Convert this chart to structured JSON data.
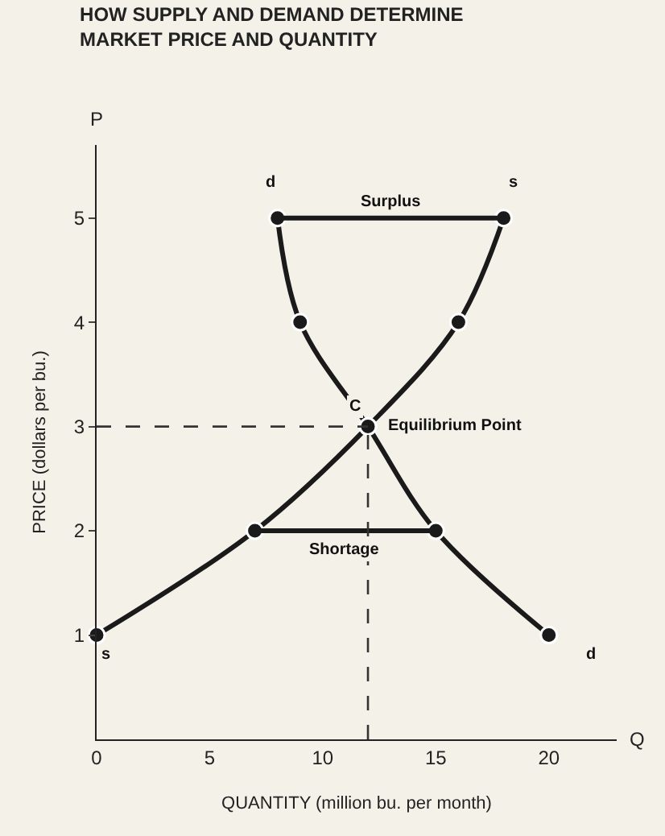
{
  "chart_data": {
    "type": "line",
    "title": "HOW SUPPLY AND DEMAND DETERMINE\nMARKET PRICE AND QUANTITY",
    "xlabel": "QUANTITY (million bu. per month)",
    "ylabel": "PRICE (dollars per bu.)",
    "series": [
      {
        "color": "#1a1a1a",
        "x": [
          0,
          7,
          12,
          16,
          18
        ],
        "values": [
          1,
          2,
          3,
          4,
          5
        ],
        "marker": "circle"
      },
      {
        "color": "#1a1a1a",
        "x": [
          8,
          9,
          12,
          15,
          20
        ],
        "values": [
          5,
          4,
          3,
          2,
          1
        ],
        "marker": "circle"
      },
      {
        "color": "#1a1a1a",
        "x": [
          8,
          18
        ],
        "values": [
          5,
          5
        ],
        "marker": "none"
      },
      {
        "color": "#1a1a1a",
        "x": [
          7,
          15
        ],
        "values": [
          2,
          2
        ],
        "marker": "none"
      }
    ],
    "xlim": [
      0,
      23
    ],
    "ylim": [
      0,
      5.7
    ],
    "xticks": [
      0,
      5,
      10,
      15,
      20
    ],
    "yticks": [
      1,
      2,
      3,
      4,
      5
    ],
    "grid": false,
    "ref_lines": [
      {
        "axis": "x",
        "value": 12,
        "line_style": "dashed"
      },
      {
        "axis": "y",
        "value": 3,
        "line_style": "dashed"
      }
    ],
    "annotations": [
      "Surplus",
      "Shortage",
      "Equilibrium Point",
      "C",
      "s",
      "s",
      "d",
      "d",
      "P",
      "Q"
    ]
  }
}
